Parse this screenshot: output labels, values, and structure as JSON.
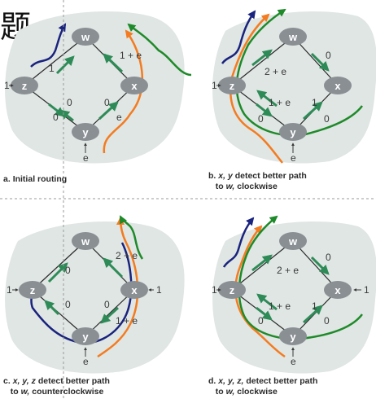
{
  "title_fragment": "题",
  "routers": {
    "w": "w",
    "x": "x",
    "y": "y",
    "z": "z"
  },
  "incoming_traffic": {
    "one": "1",
    "e": "e"
  },
  "panels": {
    "a": {
      "caption": {
        "letter": "a.",
        "text": "Initial routing"
      },
      "link_costs": {
        "z_w": "1",
        "x_w": "1 + e",
        "z_y": "0",
        "z_y_lower": "0",
        "x_y": "0",
        "y_x": "e"
      }
    },
    "b": {
      "caption": {
        "letter": "b.",
        "line1_plain": "detect better path",
        "line1_italic": "x, y",
        "line2_prefix": "to",
        "line2_italic": "w,",
        "line2_suffix": "clockwise"
      },
      "link_costs": {
        "z_w": "2 + e",
        "x_w": "0",
        "z_y": "1 + e",
        "x_y": "1",
        "y_x": "0",
        "z_y_lower": "0"
      }
    },
    "c": {
      "caption": {
        "letter": "c.",
        "line1_plain": "detect better path",
        "line1_italic": "x, y, z",
        "line2_prefix": "to",
        "line2_italic": "w,",
        "line2_suffix": "counterclockwise"
      },
      "link_costs": {
        "z_w": "0",
        "x_w": "2 + e",
        "z_y": "0",
        "x_y": "0",
        "y_x": "1 + e"
      }
    },
    "d": {
      "caption": {
        "letter": "d.",
        "line1_plain": "detect better path",
        "line1_italic": "x, y, z,",
        "line2_prefix": "to",
        "line2_italic": "w,",
        "line2_suffix": "clockwise"
      },
      "link_costs": {
        "z_w": "2 + e",
        "x_w": "0",
        "z_y": "1 + e",
        "x_y": "1",
        "y_x": "0",
        "z_y_lower": "0"
      }
    }
  },
  "colors": {
    "blob": "#dfe6e3",
    "router": "#8a8f94",
    "link": "#2b2b2b",
    "arrow": "#2e8b57",
    "orange": "#f47b20",
    "green": "#1f8a2a",
    "navy": "#1a237e",
    "guide": "#9a9a9a"
  }
}
